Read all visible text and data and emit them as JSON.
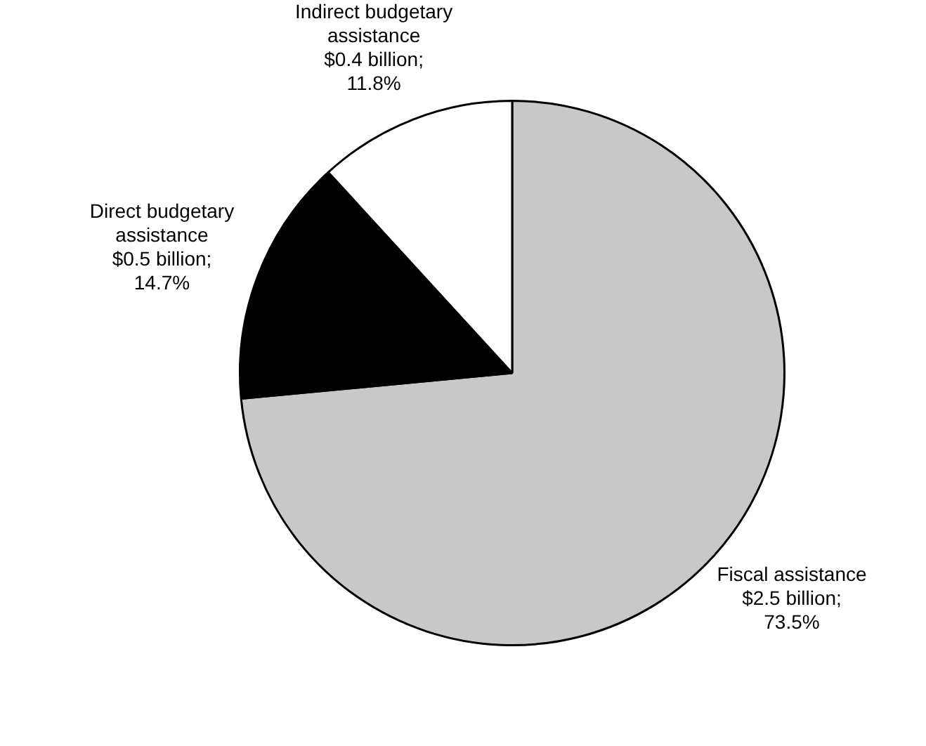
{
  "chart_data": {
    "type": "pie",
    "categories": [
      "Fiscal assistance",
      "Direct budgetary assistance",
      "Indirect budgetary assistance"
    ],
    "values": [
      73.5,
      14.7,
      11.8
    ],
    "colors": [
      "#c8c8c8",
      "#000000",
      "#ffffff"
    ],
    "value_labels": [
      "$2.5 billion; 73.5%",
      "$0.5 billion; 14.7%",
      "$0.4 billion; 11.8%"
    ],
    "legend": false
  }
}
